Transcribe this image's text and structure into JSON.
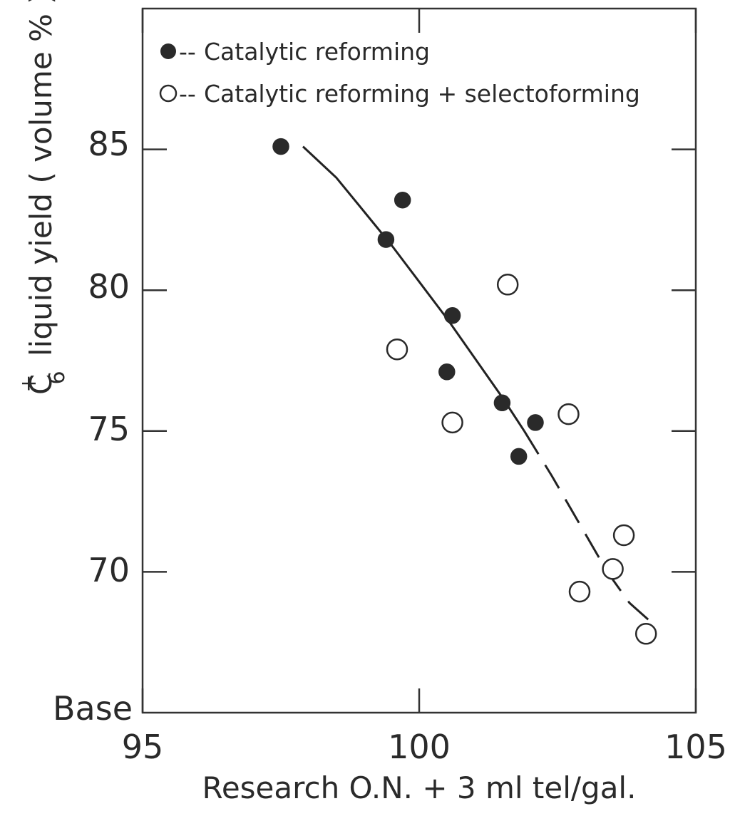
{
  "chart_data": {
    "type": "scatter",
    "title": "",
    "xlabel": "Research O.N. + 3 ml tel/gal.",
    "ylabel_main": "liquid yield  ( volume % )",
    "ylabel_species": "C",
    "ylabel_sup": "+",
    "ylabel_sub": "6",
    "xlim": [
      95,
      105
    ],
    "ylim": [
      65,
      90
    ],
    "x_ticks": [
      95,
      100,
      105
    ],
    "y_ticks": [
      70,
      75,
      80,
      85
    ],
    "y_base_label": "Base",
    "grid": false,
    "legend_position": "top-left",
    "series": [
      {
        "name": "Catalytic reforming",
        "legend_prefix": "--",
        "marker": "filled-circle",
        "points": [
          {
            "x": 97.5,
            "y": 85.1
          },
          {
            "x": 99.4,
            "y": 81.8
          },
          {
            "x": 99.7,
            "y": 83.2
          },
          {
            "x": 100.5,
            "y": 77.1
          },
          {
            "x": 100.6,
            "y": 79.1
          },
          {
            "x": 101.5,
            "y": 76.0
          },
          {
            "x": 101.8,
            "y": 74.1
          },
          {
            "x": 102.1,
            "y": 75.3
          }
        ]
      },
      {
        "name": "Catalytic reforming + selectoforming",
        "legend_prefix": "--",
        "marker": "open-circle",
        "points": [
          {
            "x": 99.6,
            "y": 77.9
          },
          {
            "x": 100.6,
            "y": 75.3
          },
          {
            "x": 101.6,
            "y": 80.2
          },
          {
            "x": 102.7,
            "y": 75.6
          },
          {
            "x": 102.9,
            "y": 69.3
          },
          {
            "x": 103.5,
            "y": 70.1
          },
          {
            "x": 103.7,
            "y": 71.3
          },
          {
            "x": 104.1,
            "y": 67.8
          }
        ]
      }
    ],
    "fit_curve": {
      "solid": [
        [
          97.9,
          85.1
        ],
        [
          98.5,
          84.0
        ],
        [
          99.0,
          82.8
        ],
        [
          99.5,
          81.6
        ],
        [
          100.0,
          80.3
        ],
        [
          100.5,
          79.0
        ],
        [
          101.0,
          77.6
        ],
        [
          101.5,
          76.2
        ],
        [
          101.9,
          75.0
        ]
      ],
      "dashed": [
        [
          101.9,
          75.0
        ],
        [
          102.4,
          73.4
        ],
        [
          102.9,
          71.7
        ],
        [
          103.4,
          70.0
        ],
        [
          103.8,
          68.9
        ],
        [
          104.2,
          68.2
        ]
      ]
    }
  }
}
